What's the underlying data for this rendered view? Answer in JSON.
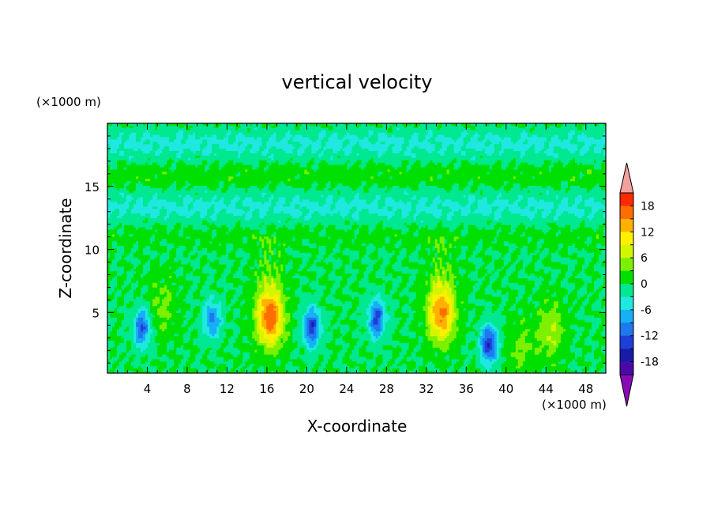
{
  "chart_data": {
    "type": "heatmap",
    "title": "vertical velocity",
    "xlabel": "X-coordinate",
    "ylabel": "Z-coordinate",
    "x_unit": "(×1000 m)",
    "y_unit": "(×1000 m)",
    "xlim": [
      0,
      50
    ],
    "ylim": [
      0.2,
      20
    ],
    "x_ticks": [
      "4",
      "8",
      "12",
      "16",
      "20",
      "24",
      "28",
      "32",
      "36",
      "40",
      "44",
      "48"
    ],
    "y_ticks": [
      "5",
      "10",
      "15"
    ],
    "x_tick_values": [
      4,
      8,
      12,
      16,
      20,
      24,
      28,
      32,
      36,
      40,
      44,
      48
    ],
    "y_tick_values": [
      5,
      10,
      15
    ],
    "grid": false,
    "colorbar": {
      "levels": [
        -21,
        -18,
        -15,
        -12,
        -9,
        -6,
        -3,
        0,
        3,
        6,
        9,
        12,
        15,
        18,
        21
      ],
      "labels": [
        "18",
        "12",
        "6",
        "0",
        "-6",
        "-12",
        "-18"
      ],
      "label_values": [
        18,
        12,
        6,
        0,
        -6,
        -12,
        -18
      ],
      "under_color": "#8a0ab8",
      "over_color": "#f4a0a0",
      "colors": [
        "#4b0aa8",
        "#1a1aa8",
        "#1f3fd9",
        "#1f78ee",
        "#15b0f5",
        "#1fe8e0",
        "#00e890",
        "#00e000",
        "#7cf000",
        "#d4f500",
        "#fff000",
        "#ffb000",
        "#ff6d00",
        "#ff2a00"
      ]
    },
    "features": [
      {
        "sign": "down",
        "x": 3.5,
        "z": 3.8,
        "peak": -12
      },
      {
        "sign": "down",
        "x": 10.5,
        "z": 4.5,
        "peak": -10
      },
      {
        "sign": "up",
        "x": 16.3,
        "z": 4.7,
        "peak": 18
      },
      {
        "sign": "down",
        "x": 20.5,
        "z": 3.8,
        "peak": -14
      },
      {
        "sign": "down",
        "x": 27.0,
        "z": 4.5,
        "peak": -13
      },
      {
        "sign": "up",
        "x": 33.5,
        "z": 5.0,
        "peak": 16
      },
      {
        "sign": "down",
        "x": 38.3,
        "z": 2.5,
        "peak": -15
      },
      {
        "sign": "up",
        "x": 44.5,
        "z": 3.5,
        "peak": 6
      },
      {
        "sign": "up",
        "x": 41.5,
        "z": 2.2,
        "peak": 4
      },
      {
        "sign": "up",
        "x": 5.5,
        "z": 5.5,
        "peak": 4
      }
    ]
  }
}
